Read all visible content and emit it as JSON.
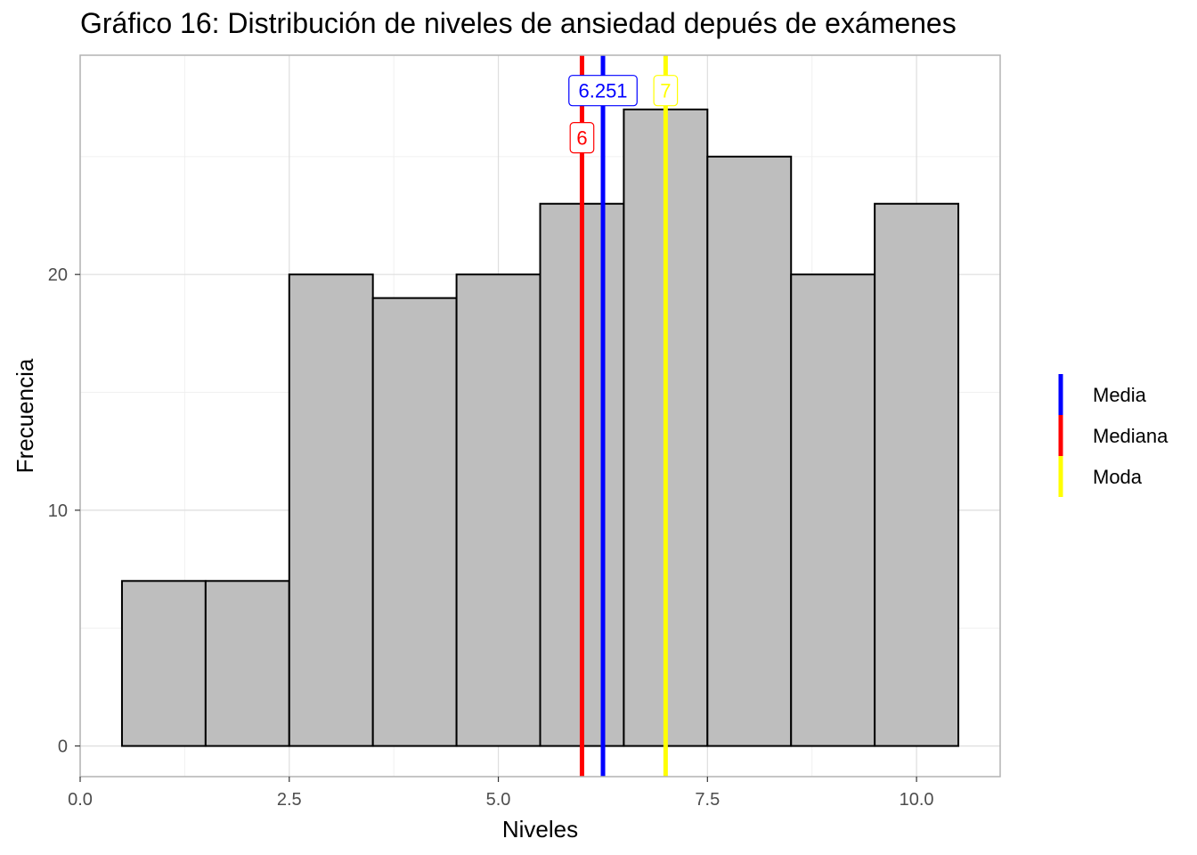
{
  "chart_data": {
    "type": "bar",
    "title": "Gráfico 16: Distribución de niveles de ansiedad depués de exámenes",
    "xlabel": "Niveles",
    "ylabel": "Frecuencia",
    "xlim": [
      0,
      11
    ],
    "ylim": [
      -1.3,
      29.3
    ],
    "x_ticks": [
      0,
      2.5,
      5,
      7.5,
      10
    ],
    "x_tick_labels": [
      "0.0",
      "2.5",
      "5.0",
      "7.5",
      "10.0"
    ],
    "y_ticks": [
      0,
      10,
      20
    ],
    "y_tick_labels": [
      "0",
      "10",
      "20"
    ],
    "grid": true,
    "bar_fill": "#bebebe",
    "bar_outline": "#000000",
    "bins": [
      {
        "x": 1,
        "width": 1,
        "count": 7
      },
      {
        "x": 2,
        "width": 1,
        "count": 7
      },
      {
        "x": 3,
        "width": 1,
        "count": 20
      },
      {
        "x": 4,
        "width": 1,
        "count": 19
      },
      {
        "x": 5,
        "width": 1,
        "count": 20
      },
      {
        "x": 6,
        "width": 1,
        "count": 23
      },
      {
        "x": 7,
        "width": 1,
        "count": 27
      },
      {
        "x": 8,
        "width": 1,
        "count": 25
      },
      {
        "x": 9,
        "width": 1,
        "count": 20
      },
      {
        "x": 10,
        "width": 1,
        "count": 23
      }
    ],
    "reference_lines": [
      {
        "name": "Media",
        "value": 6.251,
        "label": "6.251",
        "color": "#0000ff",
        "label_y": 27.8
      },
      {
        "name": "Mediana",
        "value": 6,
        "label": "6",
        "color": "#ff0000",
        "label_y": 25.8
      },
      {
        "name": "Moda",
        "value": 7,
        "label": "7",
        "color": "#ffff00",
        "label_y": 27.8
      }
    ],
    "legend": {
      "position": "right",
      "entries": [
        {
          "label": "Media",
          "color": "#0000ff"
        },
        {
          "label": "Mediana",
          "color": "#ff0000"
        },
        {
          "label": "Moda",
          "color": "#ffff00"
        }
      ]
    }
  }
}
